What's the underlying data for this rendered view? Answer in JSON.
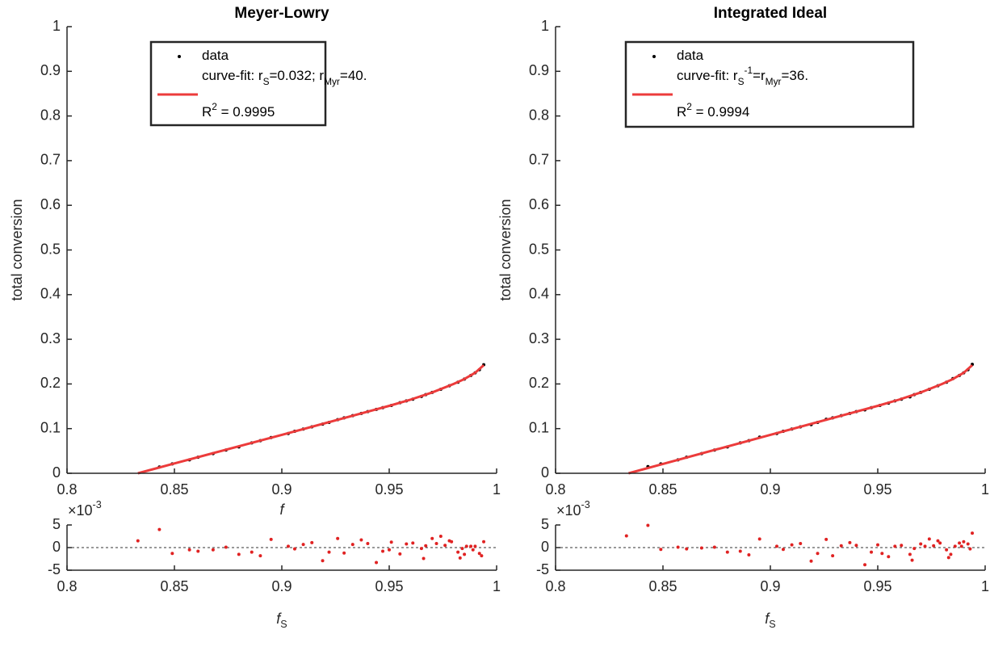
{
  "chart_data": [
    {
      "type": "scatter",
      "title": "Meyer-Lowry",
      "xlabel": [
        {
          "text": "f",
          "style": "italic"
        }
      ],
      "ylabel": "total conversion",
      "xlim": [
        0.8,
        1
      ],
      "xticks": [
        0.8,
        0.85,
        0.9,
        0.95,
        1
      ],
      "ylim": [
        0,
        1
      ],
      "yticks": [
        0,
        0.1,
        0.2,
        0.3,
        0.4,
        0.5,
        0.6,
        0.7,
        0.8,
        0.9,
        1
      ],
      "legend": "top",
      "legend_note": [
        {
          "text": "R"
        },
        {
          "text": "2",
          "script": "super"
        },
        {
          "text": " = 0.9995"
        }
      ],
      "series": [
        {
          "name": [
            {
              "text": "data"
            }
          ],
          "mode": "markers",
          "color": "#000000",
          "x": [
            0.843,
            0.849,
            0.857,
            0.861,
            0.868,
            0.874,
            0.88,
            0.886,
            0.89,
            0.895,
            0.903,
            0.906,
            0.91,
            0.914,
            0.919,
            0.922,
            0.926,
            0.929,
            0.933,
            0.937,
            0.94,
            0.944,
            0.947,
            0.951,
            0.955,
            0.958,
            0.961,
            0.965,
            0.967,
            0.97,
            0.974,
            0.978,
            0.982,
            0.985,
            0.988,
            0.99,
            0.992,
            0.994
          ],
          "values": [
            0.014,
            0.021,
            0.03,
            0.036,
            0.044,
            0.052,
            0.059,
            0.068,
            0.073,
            0.08,
            0.089,
            0.094,
            0.099,
            0.104,
            0.11,
            0.114,
            0.12,
            0.124,
            0.129,
            0.134,
            0.138,
            0.143,
            0.147,
            0.152,
            0.158,
            0.162,
            0.166,
            0.172,
            0.176,
            0.181,
            0.188,
            0.196,
            0.204,
            0.211,
            0.219,
            0.225,
            0.232,
            0.243
          ]
        },
        {
          "name": [
            {
              "text": "curve-fit: r"
            },
            {
              "text": "S",
              "script": "sub"
            },
            {
              "text": "=0.032; r"
            },
            {
              "text": "Myr",
              "script": "sub"
            },
            {
              "text": "=40."
            }
          ],
          "mode": "line",
          "color": "#ec3b3b",
          "x": [
            0.833,
            0.85,
            0.9,
            0.95,
            0.96,
            0.97,
            0.98,
            0.985,
            0.99,
            0.994
          ],
          "values": [
            0,
            0.022,
            0.086,
            0.151,
            0.165,
            0.181,
            0.2,
            0.211,
            0.225,
            0.242
          ]
        }
      ]
    },
    {
      "type": "scatter",
      "title": "Integrated Ideal",
      "ylabel": "total conversion",
      "xlim": [
        0.8,
        1
      ],
      "xticks": [
        0.8,
        0.85,
        0.9,
        0.95,
        1
      ],
      "ylim": [
        0,
        1
      ],
      "yticks": [
        0,
        0.1,
        0.2,
        0.3,
        0.4,
        0.5,
        0.6,
        0.7,
        0.8,
        0.9,
        1
      ],
      "legend": "top",
      "legend_note": [
        {
          "text": "R"
        },
        {
          "text": "2",
          "script": "super"
        },
        {
          "text": " = 0.9994"
        }
      ],
      "series": [
        {
          "name": [
            {
              "text": "data"
            }
          ],
          "mode": "markers",
          "color": "#000000",
          "x": [
            0.843,
            0.849,
            0.857,
            0.861,
            0.868,
            0.874,
            0.88,
            0.886,
            0.89,
            0.895,
            0.903,
            0.906,
            0.91,
            0.914,
            0.919,
            0.922,
            0.926,
            0.929,
            0.933,
            0.937,
            0.94,
            0.944,
            0.947,
            0.951,
            0.955,
            0.958,
            0.961,
            0.965,
            0.967,
            0.97,
            0.974,
            0.978,
            0.982,
            0.985,
            0.988,
            0.99,
            0.992,
            0.994
          ],
          "values": [
            0.015,
            0.021,
            0.03,
            0.036,
            0.044,
            0.052,
            0.059,
            0.068,
            0.073,
            0.081,
            0.089,
            0.094,
            0.099,
            0.104,
            0.109,
            0.114,
            0.121,
            0.124,
            0.129,
            0.134,
            0.138,
            0.142,
            0.147,
            0.152,
            0.157,
            0.162,
            0.166,
            0.171,
            0.176,
            0.181,
            0.188,
            0.196,
            0.204,
            0.212,
            0.219,
            0.225,
            0.232,
            0.244
          ]
        },
        {
          "name": [
            {
              "text": "curve-fit: r"
            },
            {
              "text": "S",
              "script": "sub"
            },
            {
              "text": "-1",
              "script": "super"
            },
            {
              "text": "=r"
            },
            {
              "text": "Myr",
              "script": "sub"
            },
            {
              "text": "=36."
            }
          ],
          "mode": "line",
          "color": "#ec3b3b",
          "x": [
            0.834,
            0.85,
            0.9,
            0.95,
            0.96,
            0.97,
            0.98,
            0.985,
            0.99,
            0.994
          ],
          "values": [
            0,
            0.021,
            0.086,
            0.151,
            0.165,
            0.181,
            0.2,
            0.211,
            0.225,
            0.242
          ]
        }
      ]
    },
    {
      "type": "scatter",
      "xlabel": [
        {
          "text": "f",
          "style": "italic"
        },
        {
          "text": "S",
          "script": "sub"
        }
      ],
      "y_exponent": [
        {
          "text": "×10"
        },
        {
          "text": "-3",
          "script": "super"
        }
      ],
      "xlim": [
        0.8,
        1
      ],
      "xticks": [
        0.8,
        0.85,
        0.9,
        0.95,
        1
      ],
      "ylim": [
        -5,
        5
      ],
      "yticks": [
        -5,
        0,
        5
      ],
      "reference_line": 0,
      "series": [
        {
          "mode": "markers",
          "color": "#e02222",
          "x": [
            0.833,
            0.843,
            0.849,
            0.857,
            0.861,
            0.868,
            0.874,
            0.88,
            0.886,
            0.89,
            0.895,
            0.903,
            0.906,
            0.91,
            0.914,
            0.919,
            0.922,
            0.926,
            0.929,
            0.933,
            0.937,
            0.94,
            0.944,
            0.947,
            0.95,
            0.951,
            0.955,
            0.958,
            0.961,
            0.965,
            0.966,
            0.967,
            0.97,
            0.972,
            0.974,
            0.976,
            0.978,
            0.979,
            0.982,
            0.983,
            0.984,
            0.985,
            0.986,
            0.988,
            0.989,
            0.99,
            0.992,
            0.993,
            0.994
          ],
          "values": [
            1.5,
            4,
            -1.3,
            -0.5,
            -0.8,
            -0.5,
            0.1,
            -1.5,
            -1,
            -1.8,
            1.8,
            0.3,
            -0.3,
            0.7,
            1.1,
            -2.9,
            -1,
            2,
            -1.2,
            0.7,
            1.7,
            0.9,
            -3.3,
            -0.8,
            -0.5,
            1.2,
            -1.4,
            0.8,
            1,
            -0.2,
            -2.4,
            0.4,
            2,
            0.9,
            2.5,
            0.5,
            1.5,
            1.3,
            -1,
            -2.3,
            -0.2,
            -1.5,
            0.3,
            0.3,
            -0.5,
            0.3,
            -1.3,
            -1.8,
            1.3
          ]
        }
      ]
    },
    {
      "type": "scatter",
      "xlabel": [
        {
          "text": "f",
          "style": "italic"
        },
        {
          "text": "S",
          "script": "sub"
        }
      ],
      "y_exponent": [
        {
          "text": "×10"
        },
        {
          "text": "-3",
          "script": "super"
        }
      ],
      "xlim": [
        0.8,
        1
      ],
      "xticks": [
        0.8,
        0.85,
        0.9,
        0.95,
        1
      ],
      "ylim": [
        -5,
        5
      ],
      "yticks": [
        -5,
        0,
        5
      ],
      "reference_line": 0,
      "series": [
        {
          "mode": "markers",
          "color": "#e02222",
          "x": [
            0.833,
            0.843,
            0.849,
            0.857,
            0.861,
            0.868,
            0.874,
            0.88,
            0.886,
            0.89,
            0.895,
            0.903,
            0.906,
            0.91,
            0.914,
            0.919,
            0.922,
            0.926,
            0.929,
            0.933,
            0.937,
            0.94,
            0.944,
            0.947,
            0.95,
            0.952,
            0.955,
            0.958,
            0.961,
            0.965,
            0.966,
            0.967,
            0.97,
            0.972,
            0.974,
            0.976,
            0.978,
            0.979,
            0.982,
            0.983,
            0.984,
            0.986,
            0.988,
            0.989,
            0.99,
            0.992,
            0.993,
            0.994
          ],
          "values": [
            2.6,
            4.9,
            -0.4,
            0.1,
            -0.3,
            -0.1,
            0.1,
            -1,
            -0.8,
            -1.6,
            1.9,
            0.3,
            -0.4,
            0.6,
            0.9,
            -3,
            -1.3,
            1.8,
            -1.8,
            0.4,
            1.1,
            0.5,
            -3.8,
            -1,
            0.6,
            -1.3,
            -2,
            0.3,
            0.5,
            -1.5,
            -2.8,
            -0.2,
            0.8,
            0.3,
            1.9,
            0.4,
            1.5,
            1,
            -0.5,
            -2.2,
            -1.5,
            0.3,
            1,
            0.3,
            1.3,
            0.8,
            -0.3,
            3.2
          ]
        }
      ]
    }
  ]
}
